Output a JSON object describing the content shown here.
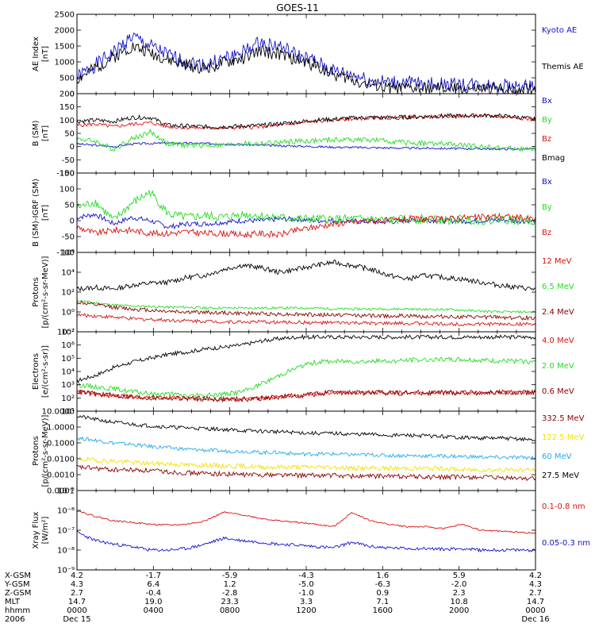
{
  "title": "GOES-11",
  "colors": {
    "black": "#000000",
    "blue": "#1111cc",
    "green": "#22dd22",
    "red": "#dd1111",
    "darkred": "#8b0000",
    "yellow": "#f2e000",
    "cyan": "#22aaee"
  },
  "chart_data": [
    {
      "type": "line",
      "panel": "ae",
      "ylabel": [
        "AE Index",
        "[nT]"
      ],
      "ylim": [
        0,
        2500
      ],
      "yticks": [
        "0",
        "500",
        "1000",
        "1500",
        "2000",
        "2500"
      ],
      "yticks_vals": [
        0,
        500,
        1000,
        1500,
        2000,
        2500
      ],
      "series": [
        {
          "name": "Kyoto AE",
          "color": "blue",
          "noise": 230,
          "seed": 1,
          "values": [
            500,
            900,
            1300,
            1800,
            1500,
            1200,
            1000,
            900,
            1100,
            1300,
            1600,
            1500,
            1200,
            1000,
            700,
            600,
            400,
            350,
            330,
            300,
            300,
            280,
            260,
            250,
            230,
            220
          ]
        },
        {
          "name": "Themis AE",
          "color": "black",
          "noise": 200,
          "seed": 2,
          "values": [
            450,
            800,
            1150,
            1500,
            1300,
            1050,
            900,
            800,
            950,
            1100,
            1350,
            1250,
            1050,
            900,
            600,
            450,
            260,
            180,
            170,
            160,
            160,
            150,
            150,
            140,
            140,
            140
          ]
        }
      ]
    },
    {
      "type": "line",
      "panel": "bsm",
      "ylabel": [
        "B (SM)",
        "[nT]"
      ],
      "ylim": [
        -100,
        200
      ],
      "yticks": [
        "-100",
        "-50",
        "0",
        "50",
        "100",
        "150",
        "200"
      ],
      "yticks_vals": [
        -100,
        -50,
        0,
        50,
        100,
        150,
        200
      ],
      "series": [
        {
          "name": "Bx",
          "color": "blue",
          "noise": 4,
          "seed": 3,
          "values": [
            10,
            5,
            0,
            10,
            12,
            13,
            13,
            12,
            10,
            8,
            5,
            3,
            2,
            0,
            -2,
            -3,
            -4,
            -5,
            -6,
            -6,
            -7,
            -8,
            -8,
            -9,
            -9,
            -10
          ]
        },
        {
          "name": "By",
          "color": "green",
          "noise": 10,
          "seed": 4,
          "values": [
            30,
            20,
            -10,
            30,
            55,
            10,
            5,
            5,
            5,
            10,
            12,
            15,
            20,
            22,
            25,
            27,
            25,
            20,
            15,
            12,
            10,
            5,
            0,
            -5,
            -8,
            -12
          ]
        },
        {
          "name": "Bz",
          "color": "red",
          "noise": 7,
          "seed": 5,
          "values": [
            80,
            85,
            75,
            85,
            90,
            75,
            72,
            70,
            70,
            72,
            75,
            80,
            88,
            95,
            100,
            105,
            108,
            108,
            110,
            112,
            114,
            115,
            116,
            114,
            110,
            100
          ]
        },
        {
          "name": "Bmag",
          "color": "black",
          "noise": 8,
          "seed": 6,
          "values": [
            95,
            100,
            95,
            110,
            110,
            80,
            78,
            75,
            75,
            78,
            80,
            86,
            93,
            100,
            104,
            108,
            110,
            110,
            112,
            114,
            116,
            116,
            118,
            116,
            112,
            103
          ]
        }
      ]
    },
    {
      "type": "line",
      "panel": "bigrf",
      "ylabel": [
        "B (SM)-IGRF (SM)",
        "[nT]"
      ],
      "ylim": [
        -100,
        150
      ],
      "yticks": [
        "-100",
        "-50",
        "0",
        "50",
        "100",
        "150"
      ],
      "yticks_vals": [
        -100,
        -50,
        0,
        50,
        100,
        150
      ],
      "series": [
        {
          "name": "Bx",
          "color": "blue",
          "noise": 8,
          "seed": 7,
          "values": [
            10,
            20,
            -10,
            10,
            0,
            -20,
            -10,
            -10,
            -5,
            0,
            0,
            5,
            5,
            0,
            0,
            -2,
            -3,
            -4,
            0,
            2,
            0,
            -2,
            0,
            2,
            0,
            -2
          ]
        },
        {
          "name": "By",
          "color": "green",
          "noise": 14,
          "seed": 8,
          "values": [
            40,
            60,
            0,
            55,
            90,
            20,
            10,
            15,
            10,
            20,
            15,
            10,
            5,
            5,
            5,
            5,
            5,
            0,
            5,
            5,
            0,
            5,
            0,
            5,
            0,
            0
          ]
        },
        {
          "name": "Bz",
          "color": "red",
          "noise": 10,
          "seed": 9,
          "values": [
            -20,
            -40,
            -30,
            -30,
            -40,
            -40,
            -35,
            -40,
            -40,
            -45,
            -40,
            -45,
            -30,
            -20,
            -10,
            -5,
            0,
            0,
            5,
            5,
            5,
            10,
            10,
            15,
            10,
            5
          ]
        }
      ]
    },
    {
      "type": "line",
      "panel": "protons1",
      "scale": "log",
      "ylabel": [
        "Protons",
        "[p/(cm²-s-sr-MeV)]"
      ],
      "ylim": [
        0.01,
        1000000
      ],
      "yticks": [
        "10⁻²",
        "10⁰",
        "10²",
        "10⁴",
        "10⁶"
      ],
      "yticks_vals": [
        0.01,
        1,
        100,
        10000,
        1000000
      ],
      "series": [
        {
          "name": "12 MeV",
          "color": "red",
          "noise": 0.18,
          "seed": 10,
          "values": [
            0.5,
            0.4,
            0.3,
            0.2,
            0.18,
            0.15,
            0.13,
            0.12,
            0.1,
            0.1,
            0.1,
            0.09,
            0.09,
            0.08,
            0.08,
            0.08,
            0.07,
            0.07,
            0.07,
            0.07,
            0.06,
            0.06,
            0.06,
            0.06,
            0.06,
            0.06
          ]
        },
        {
          "name": "6.5 MeV",
          "color": "green",
          "noise": 0.12,
          "seed": 11,
          "values": [
            15,
            8,
            5,
            4,
            3.5,
            3,
            3,
            2.5,
            2.5,
            2.5,
            2.5,
            2.5,
            2.5,
            2.5,
            2,
            2,
            2,
            2,
            2,
            1.8,
            1.8,
            1.5,
            1.2,
            1,
            1,
            1
          ]
        },
        {
          "name": "2.4 MeV",
          "color": "darkred",
          "noise": 0.2,
          "seed": 12,
          "values": [
            10,
            5,
            3,
            2,
            1.5,
            1.2,
            1,
            0.9,
            0.8,
            0.7,
            0.7,
            0.6,
            0.6,
            0.5,
            0.5,
            0.5,
            0.4,
            0.4,
            0.4,
            0.35,
            0.35,
            0.3,
            0.3,
            0.3,
            0.25,
            0.25
          ]
        },
        {
          "name": "",
          "color": "black",
          "noise": 0.25,
          "seed": 13,
          "values": [
            200,
            300,
            200,
            500,
            800,
            1000,
            3000,
            5000,
            20000,
            50000,
            30000,
            10000,
            20000,
            50000,
            100000,
            50000,
            20000,
            5000,
            2000,
            5000,
            3000,
            2000,
            1000,
            500,
            300,
            200
          ]
        }
      ]
    },
    {
      "type": "line",
      "panel": "electrons",
      "scale": "log",
      "ylabel": [
        "Electrons",
        "[e/(cm²-s-sr)]"
      ],
      "ylim": [
        10,
        10000000
      ],
      "yticks": [
        "10¹",
        "10²",
        "10³",
        "10⁴",
        "10⁵",
        "10⁶",
        "10⁷"
      ],
      "yticks_vals": [
        10,
        100,
        1000,
        10000,
        100000,
        1000000,
        10000000
      ],
      "series": [
        {
          "name": "4.0 MeV",
          "color": "red",
          "noise": 0.15,
          "seed": 14,
          "values": [
            300,
            200,
            150,
            120,
            100,
            100,
            90,
            90,
            80,
            80,
            90,
            120,
            150,
            200,
            250,
            250,
            250,
            250,
            250,
            250,
            250,
            250,
            250,
            250,
            250,
            250
          ]
        },
        {
          "name": "2.0 MeV",
          "color": "green",
          "noise": 0.18,
          "seed": 15,
          "values": [
            1000,
            700,
            500,
            300,
            200,
            200,
            150,
            150,
            200,
            300,
            1000,
            5000,
            20000,
            50000,
            60000,
            60000,
            60000,
            60000,
            70000,
            80000,
            80000,
            80000,
            70000,
            60000,
            60000,
            50000
          ]
        },
        {
          "name": "0.6 MeV",
          "color": "darkred",
          "noise": 0.2,
          "seed": 16,
          "values": [
            300,
            200,
            150,
            120,
            100,
            100,
            90,
            90,
            80,
            80,
            90,
            120,
            150,
            200,
            250,
            250,
            250,
            250,
            250,
            250,
            250,
            250,
            250,
            250,
            250,
            250
          ]
        },
        {
          "name": "",
          "color": "black",
          "noise": 0.15,
          "seed": 17,
          "values": [
            2000,
            5000,
            20000,
            50000,
            100000,
            200000,
            300000,
            500000,
            700000,
            1000000,
            2000000,
            3000000,
            4000000,
            4000000,
            4000000,
            4000000,
            4000000,
            4000000,
            4000000,
            4000000,
            4000000,
            4000000,
            4000000,
            4000000,
            4000000,
            4000000
          ]
        }
      ]
    },
    {
      "type": "line",
      "panel": "protons2",
      "scale": "log",
      "ylabel": [
        "Protons",
        "[p/(cm²-s-sr-MeV)]"
      ],
      "ylim": [
        0.0001,
        10
      ],
      "yticks": [
        "0.0001",
        "0.0010",
        "0.0100",
        "0.1000",
        "1.0000",
        "10.0000"
      ],
      "yticks_vals": [
        0.0001,
        0.001,
        0.01,
        0.1,
        1,
        10
      ],
      "series": [
        {
          "name": "332.5 MeV",
          "color": "darkred",
          "noise": 0.15,
          "seed": 18,
          "values": [
            0.003,
            0.0025,
            0.002,
            0.002,
            0.0018,
            0.0015,
            0.0013,
            0.0012,
            0.0011,
            0.001,
            0.001,
            0.001,
            0.0009,
            0.0009,
            0.0009,
            0.0008,
            0.0008,
            0.0008,
            0.0008,
            0.0007,
            0.0007,
            0.0007,
            0.0007,
            0.0006,
            0.0006,
            0.0006
          ]
        },
        {
          "name": "122.5 MeV",
          "color": "yellow",
          "noise": 0.15,
          "seed": 19,
          "values": [
            0.01,
            0.008,
            0.007,
            0.006,
            0.005,
            0.005,
            0.004,
            0.004,
            0.0035,
            0.0035,
            0.003,
            0.003,
            0.003,
            0.003,
            0.003,
            0.0025,
            0.0025,
            0.0025,
            0.0025,
            0.0025,
            0.0025,
            0.002,
            0.002,
            0.002,
            0.002,
            0.002
          ]
        },
        {
          "name": "60 MeV",
          "color": "cyan",
          "noise": 0.12,
          "seed": 20,
          "values": [
            0.2,
            0.15,
            0.1,
            0.08,
            0.06,
            0.05,
            0.04,
            0.035,
            0.03,
            0.03,
            0.025,
            0.025,
            0.02,
            0.02,
            0.02,
            0.018,
            0.018,
            0.016,
            0.016,
            0.015,
            0.015,
            0.014,
            0.013,
            0.012,
            0.012,
            0.012
          ]
        },
        {
          "name": "27.5 MeV",
          "color": "black",
          "noise": 0.12,
          "seed": 21,
          "values": [
            5,
            3,
            2,
            1.5,
            1.2,
            1,
            0.9,
            0.8,
            0.7,
            0.6,
            0.55,
            0.5,
            0.45,
            0.4,
            0.4,
            0.35,
            0.35,
            0.3,
            0.3,
            0.28,
            0.25,
            0.22,
            0.2,
            0.2,
            0.18,
            0.15
          ]
        }
      ]
    },
    {
      "type": "line",
      "panel": "xray",
      "scale": "log",
      "ylabel": [
        "Xray Flux",
        "[W/m²]"
      ],
      "ylim": [
        1e-09,
        1e-05
      ],
      "yticks": [
        "10⁻⁹",
        "10⁻⁸",
        "10⁻⁷",
        "10⁻⁶",
        "10⁻⁵"
      ],
      "yticks_vals": [
        1e-09,
        1e-08,
        1e-07,
        1e-06,
        1e-05
      ],
      "series": [
        {
          "name": "0.1-0.8 nm",
          "color": "red",
          "noise": 0.04,
          "seed": 22,
          "values": [
            1e-06,
            5e-07,
            3e-07,
            2.5e-07,
            2e-07,
            1.8e-07,
            2e-07,
            3e-07,
            8e-07,
            6e-07,
            4e-07,
            3e-07,
            2.5e-07,
            2e-07,
            1.5e-07,
            8e-07,
            3e-07,
            2e-07,
            1.5e-07,
            1.5e-07,
            1.2e-07,
            2e-07,
            1e-07,
            9e-08,
            8e-08,
            7e-08
          ]
        },
        {
          "name": "0.05-0.3 nm",
          "color": "blue",
          "noise": 0.08,
          "seed": 23,
          "values": [
            8e-08,
            3e-08,
            2e-08,
            1.5e-08,
            1e-08,
            1e-08,
            1.2e-08,
            2e-08,
            4e-08,
            3e-08,
            2.5e-08,
            2e-08,
            1.8e-08,
            1.5e-08,
            1.3e-08,
            2.5e-08,
            1.5e-08,
            1.3e-08,
            1.2e-08,
            1.2e-08,
            1.1e-08,
            1.2e-08,
            1e-08,
            1e-08,
            1e-08,
            1e-08
          ]
        }
      ]
    }
  ],
  "xaxis": {
    "columns": [
      {
        "x": "4.2",
        "y": "4.3",
        "z": "2.7",
        "mlt": "14.7",
        "hhmm": "0000",
        "date": "Dec 15"
      },
      {
        "x": "-1.7",
        "y": "6.4",
        "z": "-0.4",
        "mlt": "19.0",
        "hhmm": "0400",
        "date": ""
      },
      {
        "x": "-5.9",
        "y": "1.2",
        "z": "-2.8",
        "mlt": "23.3",
        "hhmm": "0800",
        "date": ""
      },
      {
        "x": "-4.3",
        "y": "-5.0",
        "z": "-1.0",
        "mlt": "3.3",
        "hhmm": "1200",
        "date": ""
      },
      {
        "x": "1.6",
        "y": "-6.3",
        "z": "0.9",
        "mlt": "7.1",
        "hhmm": "1600",
        "date": ""
      },
      {
        "x": "5.9",
        "y": "-2.0",
        "z": "2.3",
        "mlt": "10.8",
        "hhmm": "2000",
        "date": ""
      },
      {
        "x": "4.2",
        "y": "4.3",
        "z": "2.7",
        "mlt": "14.7",
        "hhmm": "0000",
        "date": "Dec 16"
      }
    ],
    "row_labels": [
      "X-GSM",
      "Y-GSM",
      "Z-GSM",
      "MLT",
      "hhmm",
      "2006"
    ]
  }
}
